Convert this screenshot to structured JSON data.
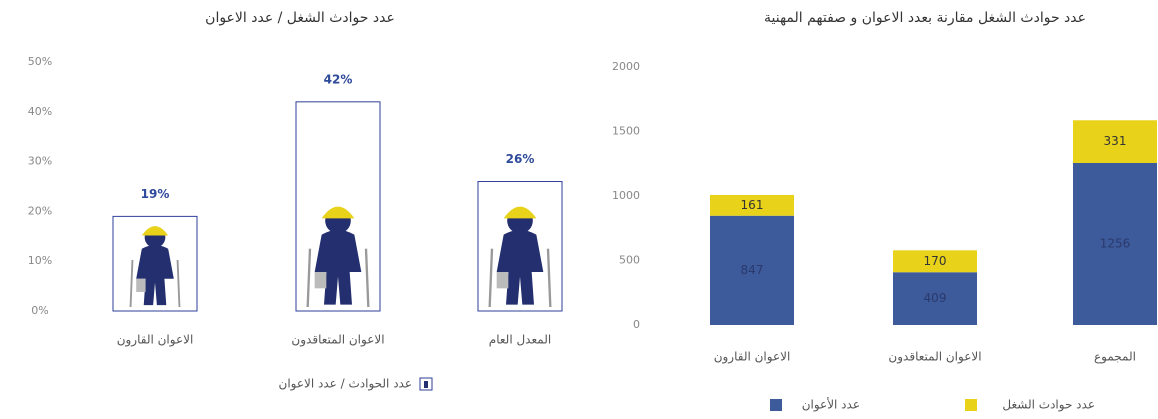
{
  "chart_data": [
    {
      "type": "pictograph",
      "title": "عدد حوادث الشغل / عدد الاعوان",
      "categories": [
        "الاعوان القارون",
        "الاعوان المتعاقدون",
        "المعدل العام"
      ],
      "values": [
        19,
        42,
        26
      ],
      "value_labels": [
        "19%",
        "42%",
        "26%"
      ],
      "color": "#2e3f9a",
      "legend": "عدد الحوادث / عدد الاعوان",
      "ylim": [
        0,
        50
      ],
      "yticks": [
        {
          "value": 0,
          "label": "0%"
        },
        {
          "value": 10,
          "label": "10%"
        },
        {
          "value": 20,
          "label": "20%"
        },
        {
          "value": 30,
          "label": "30%"
        },
        {
          "value": 40,
          "label": "40%"
        },
        {
          "value": 50,
          "label": "50%"
        }
      ]
    },
    {
      "type": "bar",
      "title": "عدد حوادث الشغل مقارنة بعدد الاعوان و صفتهم المهنية",
      "categories": [
        "الاعوان القارون",
        "الاعوان المتعاقدون",
        "المجموع"
      ],
      "series": [
        {
          "name": "عدد الأعوان",
          "color": "#3d5a9a",
          "values": [
            847,
            409,
            1256
          ]
        },
        {
          "name": "عدد حوادث الشغل",
          "color": "#e8d21a",
          "values": [
            161,
            170,
            331
          ]
        }
      ],
      "ylim": [
        0,
        2000
      ],
      "yticks": [
        0,
        500,
        1000,
        1500,
        2000
      ]
    }
  ]
}
